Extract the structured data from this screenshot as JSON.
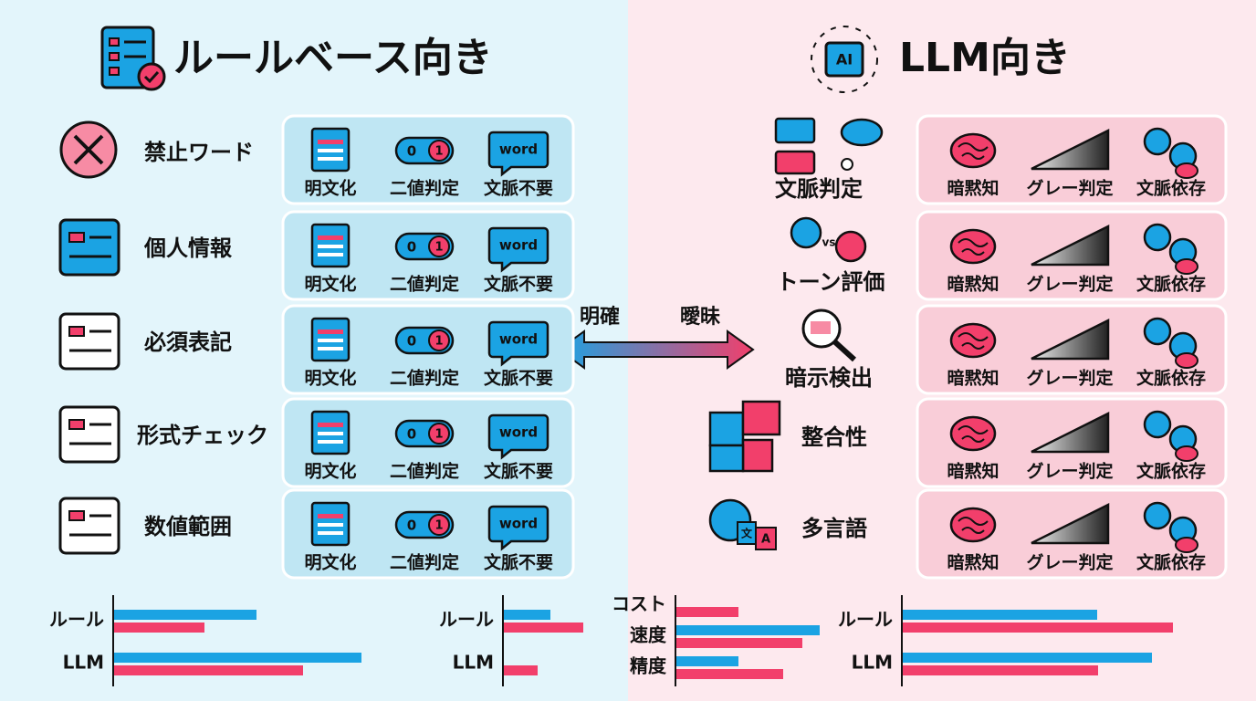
{
  "left": {
    "title": "ルールベース向き",
    "rows": [
      "禁止ワード",
      "個人情報",
      "必須表記",
      "形式チェック",
      "数値範囲"
    ],
    "tags": [
      "明文化",
      "二値判定",
      "文脈不要"
    ],
    "toggle": [
      "0",
      "1"
    ],
    "word": "word"
  },
  "middle": {
    "left_label": "明確",
    "right_label": "曖昧"
  },
  "right": {
    "title": "LLM向き",
    "icon_text": "AI",
    "rows": [
      "文脈判定",
      "トーン評価",
      "暗示検出",
      "整合性",
      "多言語"
    ],
    "tags": [
      "暗黙知",
      "グレー判定",
      "文脈依存"
    ],
    "vs": "vs",
    "translate": [
      "文",
      "A"
    ]
  },
  "chart_data": [
    {
      "type": "bar",
      "orientation": "horizontal",
      "categories": [
        "ルール",
        "LLM"
      ],
      "series": [
        {
          "color": "#1ba3e3",
          "values": [
            156,
            271
          ]
        },
        {
          "color": "#f23f6b",
          "values": [
            99,
            207
          ]
        }
      ],
      "xlim": [
        0,
        300
      ]
    },
    {
      "type": "bar",
      "orientation": "horizontal",
      "categories": [
        "ルール",
        "LLM"
      ],
      "series": [
        {
          "color": "#1ba3e3",
          "values": [
            51,
            null
          ]
        },
        {
          "color": "#f23f6b",
          "values": [
            87,
            37
          ]
        }
      ],
      "xlim": [
        0,
        300
      ]
    },
    {
      "type": "bar",
      "orientation": "horizontal",
      "categories": [
        "コスト",
        "速度",
        "精度"
      ],
      "series": [
        {
          "color": "#1ba3e3",
          "values": [
            null,
            157,
            68
          ]
        },
        {
          "color": "#f23f6b",
          "values": [
            68,
            138,
            117
          ]
        }
      ],
      "xlim": [
        0,
        300
      ]
    },
    {
      "type": "bar",
      "orientation": "horizontal",
      "categories": [
        "ルール",
        "LLM"
      ],
      "series": [
        {
          "color": "#1ba3e3",
          "values": [
            213,
            273
          ]
        },
        {
          "color": "#f23f6b",
          "values": [
            296,
            214
          ]
        }
      ],
      "xlim": [
        0,
        300
      ]
    }
  ]
}
